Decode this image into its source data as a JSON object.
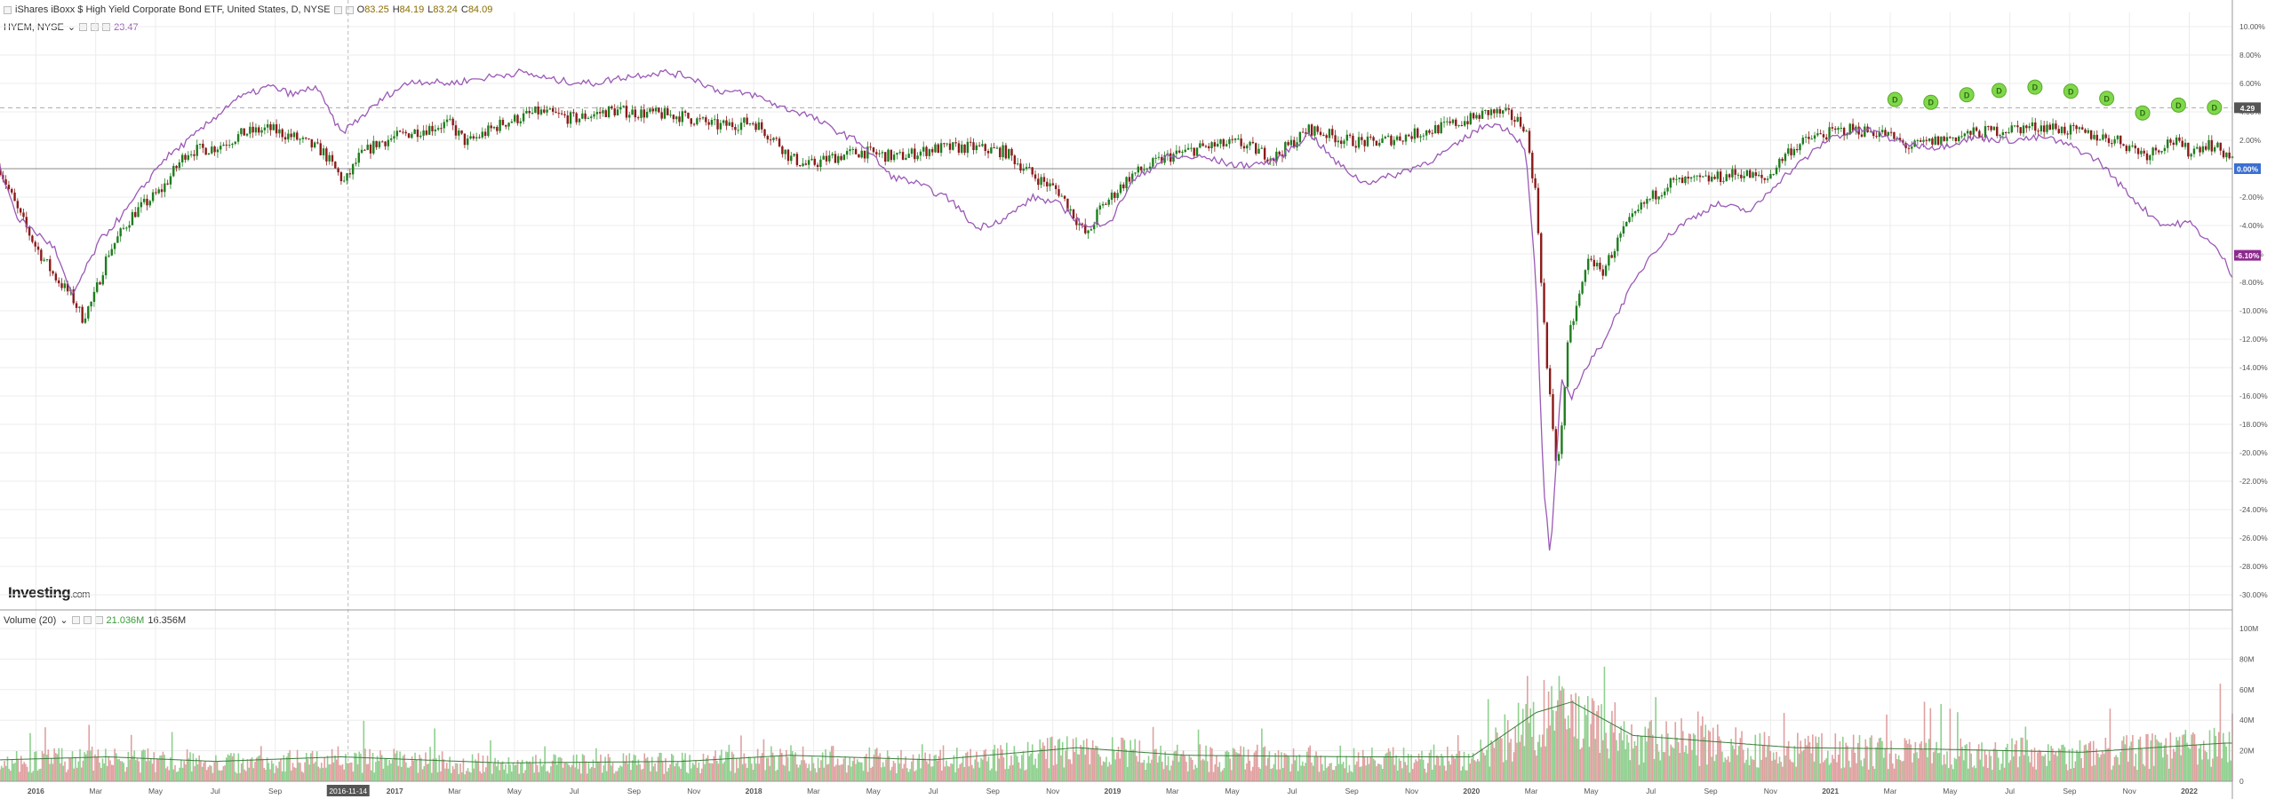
{
  "header": {
    "title": "iShares iBoxx $ High Yield Corporate Bond ETF, United States, D, NYSE",
    "ohlc": [
      {
        "label": "O",
        "value": "83.25"
      },
      {
        "label": "H",
        "value": "84.19"
      },
      {
        "label": "L",
        "value": "83.24"
      },
      {
        "label": "C",
        "value": "84.09"
      }
    ],
    "compare_label": "HYEM, NYSE",
    "compare_value": "23.47"
  },
  "volume_legend": {
    "label": "Volume (20)",
    "value": "21.036M",
    "ma_value": "16.356M"
  },
  "brand": {
    "name": "Investing",
    "suffix": ".com"
  },
  "colors": {
    "up": "#1e7d1e",
    "down": "#8b1a1a",
    "compare_line": "#9b59b6",
    "volume_up": "#8fd08f",
    "volume_down": "#e0a0a0",
    "volume_ma": "#3a7d3a",
    "dividend": "#7fd84a",
    "zero_badge": "#3b6fd0",
    "compare_badge": "#8e2b8e",
    "price_badge": "#555555"
  },
  "cursor_label": "2016-11-14",
  "badges": {
    "price": "4.29",
    "zero": "0.00%",
    "compare": "-6.10%"
  },
  "dividend_marker": "D",
  "chart_data": [
    {
      "type": "line",
      "x_ticks": [
        "2016",
        "Mar",
        "May",
        "Jul",
        "Sep",
        "2017",
        "Mar",
        "May",
        "Jul",
        "Sep",
        "Nov",
        "2018",
        "Mar",
        "May",
        "Jul",
        "Sep",
        "Nov",
        "2019",
        "Mar",
        "May",
        "Jul",
        "Sep",
        "Nov",
        "2020",
        "Mar",
        "May",
        "Jul",
        "Sep",
        "Nov",
        "2021",
        "Mar",
        "May",
        "Jul",
        "Sep",
        "Nov",
        "2022"
      ],
      "y_ticks": [
        "10.00%",
        "8.00%",
        "6.00%",
        "4.00%",
        "2.00%",
        "0.00%",
        "-2.00%",
        "-4.00%",
        "-6.00%",
        "-8.00%",
        "-10.00%",
        "-12.00%",
        "-14.00%",
        "-16.00%",
        "-18.00%",
        "-20.00%",
        "-22.00%",
        "-24.00%",
        "-26.00%",
        "-28.00%",
        "-30.00%"
      ],
      "ylim": [
        -31,
        11
      ],
      "xlim": [
        2015.9,
        2022.12
      ],
      "series": [
        {
          "name": "iShares iBoxx $ High Yield Corporate Bond ETF",
          "style": "candles",
          "points": [
            [
              2015.9,
              0.0
            ],
            [
              2015.95,
              -3.0
            ],
            [
              2016.0,
              -5.5
            ],
            [
              2016.05,
              -7.5
            ],
            [
              2016.1,
              -9.0
            ],
            [
              2016.13,
              -10.5
            ],
            [
              2016.16,
              -9.2
            ],
            [
              2016.2,
              -6.0
            ],
            [
              2016.27,
              -3.2
            ],
            [
              2016.35,
              -1.5
            ],
            [
              2016.42,
              1.2
            ],
            [
              2016.5,
              1.5
            ],
            [
              2016.58,
              2.5
            ],
            [
              2016.65,
              2.8
            ],
            [
              2016.72,
              2.2
            ],
            [
              2016.8,
              1.2
            ],
            [
              2016.86,
              -1.0
            ],
            [
              2016.9,
              0.8
            ],
            [
              2016.95,
              1.8
            ],
            [
              2017.05,
              2.6
            ],
            [
              2017.15,
              3.2
            ],
            [
              2017.2,
              1.8
            ],
            [
              2017.3,
              3.2
            ],
            [
              2017.4,
              4.0
            ],
            [
              2017.5,
              3.5
            ],
            [
              2017.6,
              4.1
            ],
            [
              2017.7,
              3.9
            ],
            [
              2017.8,
              3.7
            ],
            [
              2017.9,
              3.0
            ],
            [
              2018.0,
              3.3
            ],
            [
              2018.07,
              1.8
            ],
            [
              2018.1,
              0.8
            ],
            [
              2018.15,
              0.2
            ],
            [
              2018.22,
              0.8
            ],
            [
              2018.3,
              1.2
            ],
            [
              2018.4,
              0.8
            ],
            [
              2018.5,
              1.4
            ],
            [
              2018.6,
              1.5
            ],
            [
              2018.7,
              1.2
            ],
            [
              2018.78,
              -0.5
            ],
            [
              2018.85,
              -1.6
            ],
            [
              2018.93,
              -4.8
            ],
            [
              2018.96,
              -3.0
            ],
            [
              2019.05,
              -0.5
            ],
            [
              2019.15,
              0.8
            ],
            [
              2019.25,
              1.5
            ],
            [
              2019.35,
              1.8
            ],
            [
              2019.45,
              0.8
            ],
            [
              2019.55,
              2.8
            ],
            [
              2019.65,
              2.0
            ],
            [
              2019.72,
              1.8
            ],
            [
              2019.8,
              2.2
            ],
            [
              2019.9,
              2.8
            ],
            [
              2020.0,
              3.5
            ],
            [
              2020.05,
              4.0
            ],
            [
              2020.1,
              3.8
            ],
            [
              2020.15,
              3.0
            ],
            [
              2020.18,
              -2.0
            ],
            [
              2020.21,
              -14.0
            ],
            [
              2020.24,
              -21.5
            ],
            [
              2020.27,
              -12.0
            ],
            [
              2020.3,
              -9.0
            ],
            [
              2020.33,
              -6.0
            ],
            [
              2020.36,
              -7.5
            ],
            [
              2020.42,
              -4.5
            ],
            [
              2020.48,
              -2.5
            ],
            [
              2020.55,
              -1.0
            ],
            [
              2020.65,
              -0.8
            ],
            [
              2020.75,
              -0.3
            ],
            [
              2020.82,
              -0.8
            ],
            [
              2020.88,
              1.2
            ],
            [
              2020.95,
              2.2
            ],
            [
              2021.05,
              2.8
            ],
            [
              2021.15,
              2.5
            ],
            [
              2021.22,
              1.5
            ],
            [
              2021.3,
              2.0
            ],
            [
              2021.4,
              2.5
            ],
            [
              2021.5,
              2.8
            ],
            [
              2021.6,
              3.0
            ],
            [
              2021.7,
              2.5
            ],
            [
              2021.8,
              2.0
            ],
            [
              2021.88,
              1.0
            ],
            [
              2021.95,
              2.0
            ],
            [
              2022.0,
              1.2
            ],
            [
              2022.05,
              1.8
            ],
            [
              2022.12,
              0.8
            ]
          ]
        },
        {
          "name": "HYEM, NYSE",
          "style": "line",
          "points": [
            [
              2015.9,
              0.0
            ],
            [
              2015.95,
              -3.5
            ],
            [
              2016.0,
              -4.5
            ],
            [
              2016.05,
              -5.5
            ],
            [
              2016.1,
              -9.0
            ],
            [
              2016.13,
              -7.5
            ],
            [
              2016.18,
              -5.0
            ],
            [
              2016.25,
              -3.0
            ],
            [
              2016.35,
              0.5
            ],
            [
              2016.45,
              2.5
            ],
            [
              2016.55,
              4.8
            ],
            [
              2016.65,
              5.8
            ],
            [
              2016.72,
              5.2
            ],
            [
              2016.78,
              5.8
            ],
            [
              2016.85,
              2.5
            ],
            [
              2016.9,
              3.5
            ],
            [
              2016.98,
              5.2
            ],
            [
              2017.05,
              6.2
            ],
            [
              2017.15,
              6.0
            ],
            [
              2017.25,
              6.4
            ],
            [
              2017.35,
              6.8
            ],
            [
              2017.45,
              6.2
            ],
            [
              2017.55,
              6.0
            ],
            [
              2017.65,
              6.5
            ],
            [
              2017.75,
              6.8
            ],
            [
              2017.82,
              6.5
            ],
            [
              2017.9,
              5.5
            ],
            [
              2018.0,
              5.2
            ],
            [
              2018.08,
              4.3
            ],
            [
              2018.15,
              3.8
            ],
            [
              2018.22,
              2.8
            ],
            [
              2018.3,
              1.8
            ],
            [
              2018.38,
              -0.5
            ],
            [
              2018.45,
              -1.0
            ],
            [
              2018.55,
              -2.2
            ],
            [
              2018.62,
              -4.2
            ],
            [
              2018.7,
              -3.5
            ],
            [
              2018.78,
              -2.0
            ],
            [
              2018.85,
              -2.5
            ],
            [
              2018.93,
              -4.2
            ],
            [
              2019.0,
              -3.5
            ],
            [
              2019.05,
              -1.0
            ],
            [
              2019.15,
              0.8
            ],
            [
              2019.25,
              0.8
            ],
            [
              2019.35,
              0.2
            ],
            [
              2019.45,
              0.5
            ],
            [
              2019.55,
              2.5
            ],
            [
              2019.62,
              0.5
            ],
            [
              2019.7,
              -1.0
            ],
            [
              2019.78,
              -0.5
            ],
            [
              2019.88,
              0.5
            ],
            [
              2019.95,
              1.5
            ],
            [
              2020.0,
              2.5
            ],
            [
              2020.05,
              3.2
            ],
            [
              2020.1,
              2.8
            ],
            [
              2020.15,
              1.5
            ],
            [
              2020.18,
              -8.0
            ],
            [
              2020.2,
              -22.0
            ],
            [
              2020.22,
              -27.5
            ],
            [
              2020.25,
              -15.0
            ],
            [
              2020.28,
              -16.0
            ],
            [
              2020.32,
              -14.0
            ],
            [
              2020.36,
              -12.5
            ],
            [
              2020.42,
              -9.5
            ],
            [
              2020.5,
              -6.0
            ],
            [
              2020.58,
              -4.0
            ],
            [
              2020.68,
              -2.5
            ],
            [
              2020.78,
              -3.0
            ],
            [
              2020.85,
              -1.0
            ],
            [
              2020.92,
              0.5
            ],
            [
              2021.0,
              2.2
            ],
            [
              2021.1,
              2.8
            ],
            [
              2021.2,
              1.8
            ],
            [
              2021.3,
              1.5
            ],
            [
              2021.4,
              2.2
            ],
            [
              2021.5,
              2.0
            ],
            [
              2021.6,
              2.2
            ],
            [
              2021.68,
              1.5
            ],
            [
              2021.75,
              0.5
            ],
            [
              2021.82,
              -1.5
            ],
            [
              2021.88,
              -3.0
            ],
            [
              2021.93,
              -4.0
            ],
            [
              2022.0,
              -3.8
            ],
            [
              2022.05,
              -5.0
            ],
            [
              2022.09,
              -6.1
            ],
            [
              2022.12,
              -7.5
            ]
          ]
        }
      ],
      "dividend_x": [
        2021.18,
        2021.28,
        2021.38,
        2021.47,
        2021.57,
        2021.67,
        2021.77,
        2021.87,
        2021.97,
        2022.07
      ],
      "hlines": [
        0,
        4.29
      ]
    },
    {
      "type": "bar",
      "title": "Volume (20)",
      "y_ticks": [
        "100M",
        "80M",
        "60M",
        "40M",
        "20M",
        "0"
      ],
      "ylim": [
        0,
        100
      ],
      "units": "M",
      "profile": [
        [
          2015.9,
          14
        ],
        [
          2016.2,
          16
        ],
        [
          2016.5,
          13
        ],
        [
          2016.85,
          16
        ],
        [
          2017.3,
          12
        ],
        [
          2017.8,
          13
        ],
        [
          2018.1,
          17
        ],
        [
          2018.5,
          14
        ],
        [
          2018.9,
          22
        ],
        [
          2019.2,
          17
        ],
        [
          2019.7,
          16
        ],
        [
          2020.0,
          16
        ],
        [
          2020.18,
          45
        ],
        [
          2020.28,
          52
        ],
        [
          2020.45,
          30
        ],
        [
          2020.9,
          22
        ],
        [
          2021.3,
          21
        ],
        [
          2021.7,
          19
        ],
        [
          2022.1,
          25
        ]
      ]
    }
  ]
}
